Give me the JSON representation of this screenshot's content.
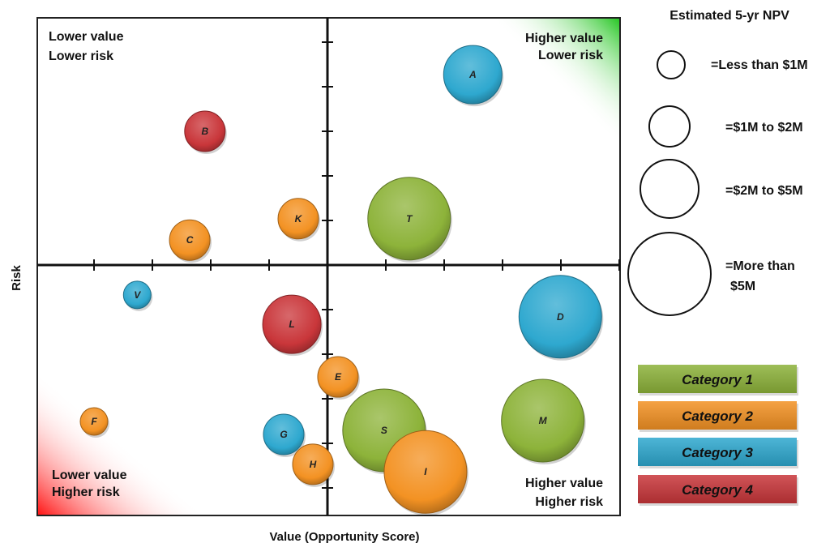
{
  "chart_data": {
    "type": "scatter",
    "subtype": "bubble",
    "xlabel": "Value (Opportunity Score)",
    "ylabel": "Risk",
    "xlim": [
      -5,
      5
    ],
    "ylim": [
      -5.6,
      5.5
    ],
    "y_direction": "up = lower risk",
    "grid": false,
    "quadrants": {
      "top_left": [
        "Lower value",
        "Lower risk"
      ],
      "top_right": [
        "Higher value",
        "Lower risk"
      ],
      "bottom_left": [
        "Lower value",
        "Higher risk"
      ],
      "bottom_right": [
        "Higher value",
        "Higher risk"
      ]
    },
    "size_legend": {
      "title": "Estimated 5-yr NPV",
      "items": [
        {
          "size": 1,
          "label": "=Less than $1M"
        },
        {
          "size": 2,
          "label": "=$1M to $2M"
        },
        {
          "size": 3,
          "label": "=$2M to $5M"
        },
        {
          "size": 4,
          "label": [
            "=More than",
            "$5M"
          ]
        }
      ]
    },
    "categories": [
      {
        "name": "Category 1",
        "color": "#8db33a"
      },
      {
        "name": "Category 2",
        "color": "#f39223"
      },
      {
        "name": "Category 3",
        "color": "#2ea8cf"
      },
      {
        "name": "Category 4",
        "color": "#c9363a"
      }
    ],
    "points": [
      {
        "label": "A",
        "x": 2.49,
        "y": 4.27,
        "size": 3,
        "category": 3
      },
      {
        "label": "B",
        "x": -2.1,
        "y": 3.0,
        "size": 2,
        "category": 4
      },
      {
        "label": "C",
        "x": -2.36,
        "y": 0.56,
        "size": 2,
        "category": 2
      },
      {
        "label": "K",
        "x": -0.5,
        "y": 1.04,
        "size": 2,
        "category": 2
      },
      {
        "label": "T",
        "x": 1.4,
        "y": 1.04,
        "size": 4,
        "category": 1
      },
      {
        "label": "V",
        "x": -3.26,
        "y": -0.67,
        "size": 1,
        "category": 3
      },
      {
        "label": "L",
        "x": -0.61,
        "y": -1.33,
        "size": 3,
        "category": 4
      },
      {
        "label": "D",
        "x": 3.99,
        "y": -1.16,
        "size": 4,
        "category": 3
      },
      {
        "label": "E",
        "x": 0.18,
        "y": -2.51,
        "size": 2,
        "category": 2
      },
      {
        "label": "F",
        "x": -4.0,
        "y": -3.51,
        "size": 1,
        "category": 2
      },
      {
        "label": "G",
        "x": -0.75,
        "y": -3.8,
        "size": 2,
        "category": 3
      },
      {
        "label": "S",
        "x": 0.97,
        "y": -3.71,
        "size": 4,
        "category": 1
      },
      {
        "label": "M",
        "x": 3.69,
        "y": -3.49,
        "size": 4,
        "category": 1
      },
      {
        "label": "H",
        "x": -0.25,
        "y": -4.47,
        "size": 2,
        "category": 2
      },
      {
        "label": "I",
        "x": 1.68,
        "y": -4.64,
        "size": 4,
        "category": 2
      }
    ]
  }
}
